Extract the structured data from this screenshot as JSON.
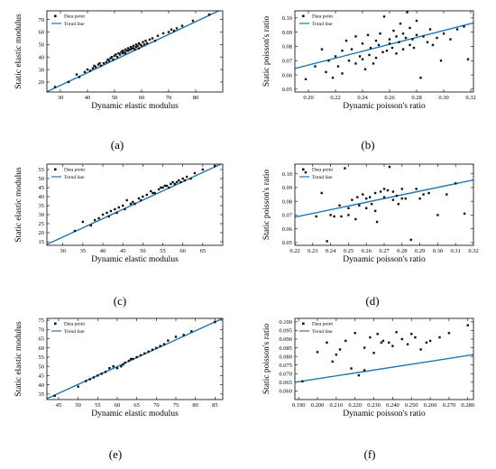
{
  "chart_data": [
    {
      "type": "scatter",
      "panel_label": "(a)",
      "xlabel": "Dynamic elastic modulus",
      "ylabel": "Static elastic modulus",
      "xlim": [
        25,
        90
      ],
      "ylim": [
        12,
        77
      ],
      "xticks": [
        30,
        40,
        50,
        60,
        70,
        80
      ],
      "yticks": [
        20,
        30,
        40,
        50,
        60,
        70
      ],
      "tick_decimals": 0,
      "legend_position": "top-left",
      "points_legend": "Data point",
      "trend_legend": "Trend line",
      "trend_line": [
        [
          25,
          12.2
        ],
        [
          90,
          78.5
        ]
      ],
      "x": [
        28,
        33,
        36,
        37,
        39,
        40,
        41,
        42,
        42.5,
        43,
        44,
        44.5,
        45,
        46,
        47,
        47.5,
        48,
        48.5,
        49,
        49.5,
        50,
        50.5,
        51,
        51.5,
        52,
        52.5,
        53,
        53,
        53.5,
        54,
        54,
        54.5,
        55,
        55,
        55.5,
        56,
        56,
        56.5,
        57,
        57,
        57.5,
        58,
        58,
        58.5,
        59,
        59,
        59.5,
        60,
        60.5,
        61,
        61.5,
        62,
        63,
        64,
        65,
        66,
        68,
        70,
        71,
        72,
        73,
        75,
        79,
        85
      ],
      "y": [
        16,
        20,
        26,
        24,
        28,
        30,
        29,
        31,
        33,
        32,
        34,
        35,
        33,
        35,
        36,
        38,
        37,
        39,
        40,
        38,
        41,
        42,
        40,
        43,
        42,
        44,
        43,
        45,
        44,
        46,
        43,
        45,
        47,
        45,
        46,
        48,
        46,
        47,
        49,
        47,
        46,
        48,
        50,
        49,
        47,
        51,
        50,
        49,
        52,
        50,
        53,
        51,
        54,
        55,
        53,
        57,
        59,
        60,
        62,
        61,
        63,
        65,
        69,
        74
      ]
    },
    {
      "type": "scatter",
      "panel_label": "(b)",
      "xlabel": "Dynamic poisson's ratio",
      "ylabel": "Static poisson's ratio",
      "xlim": [
        0.19,
        0.322
      ],
      "ylim": [
        0.048,
        0.105
      ],
      "xticks": [
        0.2,
        0.22,
        0.24,
        0.26,
        0.28,
        0.3,
        0.32
      ],
      "yticks": [
        0.05,
        0.06,
        0.07,
        0.08,
        0.09,
        0.1
      ],
      "tick_decimals": 2,
      "legend_position": "top-left",
      "points_legend": "Data point",
      "trend_legend": "Trend line",
      "trend_line": [
        [
          0.19,
          0.0645
        ],
        [
          0.322,
          0.0965
        ]
      ],
      "x": [
        0.198,
        0.205,
        0.21,
        0.213,
        0.215,
        0.218,
        0.22,
        0.222,
        0.225,
        0.225,
        0.228,
        0.23,
        0.232,
        0.235,
        0.235,
        0.238,
        0.24,
        0.24,
        0.242,
        0.244,
        0.245,
        0.246,
        0.248,
        0.25,
        0.25,
        0.252,
        0.253,
        0.255,
        0.256,
        0.258,
        0.26,
        0.26,
        0.262,
        0.263,
        0.265,
        0.265,
        0.267,
        0.268,
        0.27,
        0.27,
        0.272,
        0.273,
        0.275,
        0.275,
        0.277,
        0.278,
        0.28,
        0.28,
        0.283,
        0.285,
        0.288,
        0.29,
        0.292,
        0.295,
        0.298,
        0.3,
        0.305,
        0.31,
        0.315,
        0.318
      ],
      "y": [
        0.057,
        0.066,
        0.078,
        0.062,
        0.07,
        0.058,
        0.073,
        0.066,
        0.077,
        0.061,
        0.084,
        0.07,
        0.078,
        0.068,
        0.087,
        0.073,
        0.071,
        0.082,
        0.064,
        0.088,
        0.074,
        0.079,
        0.068,
        0.084,
        0.072,
        0.081,
        0.089,
        0.076,
        0.101,
        0.077,
        0.082,
        0.085,
        0.079,
        0.091,
        0.087,
        0.075,
        0.083,
        0.096,
        0.089,
        0.078,
        0.086,
        0.104,
        0.081,
        0.093,
        0.085,
        0.079,
        0.088,
        0.098,
        0.058,
        0.087,
        0.083,
        0.092,
        0.081,
        0.086,
        0.07,
        0.089,
        0.085,
        0.092,
        0.094,
        0.071
      ]
    },
    {
      "type": "scatter",
      "panel_label": "(c)",
      "xlabel": "Dynamic elastic modulus",
      "ylabel": "Static elastic modulus",
      "xlim": [
        26,
        70
      ],
      "ylim": [
        13,
        58
      ],
      "xticks": [
        30,
        35,
        40,
        45,
        50,
        55,
        60,
        65
      ],
      "yticks": [
        15,
        20,
        25,
        30,
        35,
        40,
        45,
        50,
        55
      ],
      "tick_decimals": 0,
      "legend_position": "top-left",
      "points_legend": "Data point",
      "trend_legend": "Trend line",
      "trend_line": [
        [
          26,
          13.5
        ],
        [
          70,
          58.5
        ]
      ],
      "x": [
        33,
        35,
        37,
        38,
        39,
        40,
        41,
        41.5,
        42,
        43,
        43.5,
        44,
        45,
        45.5,
        46,
        47,
        47.5,
        48,
        49,
        49.5,
        50,
        51,
        52,
        52.5,
        53,
        54,
        54.5,
        55,
        55.5,
        56,
        56.5,
        57,
        57.5,
        58,
        58.5,
        59,
        59.5,
        60,
        60.5,
        61,
        62,
        63,
        65,
        68
      ],
      "y": [
        21,
        26,
        24,
        27,
        28,
        30,
        31,
        29,
        32,
        33,
        31,
        34,
        35,
        33,
        38,
        36,
        37,
        36,
        39,
        38,
        40,
        41,
        43,
        42,
        42,
        44,
        45,
        45,
        46,
        46,
        45,
        47,
        48,
        47,
        48,
        49,
        48,
        50,
        49,
        51,
        50,
        53,
        55,
        57
      ]
    },
    {
      "type": "scatter",
      "panel_label": "(d)",
      "xlabel": "Dynamic poisson's ratio",
      "ylabel": "Static poisson's ratio",
      "xlim": [
        0.22,
        0.32
      ],
      "ylim": [
        0.048,
        0.107
      ],
      "xticks": [
        0.22,
        0.23,
        0.24,
        0.25,
        0.26,
        0.27,
        0.28,
        0.29,
        0.3,
        0.31,
        0.32
      ],
      "yticks": [
        0.05,
        0.06,
        0.07,
        0.08,
        0.09,
        0.1
      ],
      "tick_decimals": 2,
      "legend_position": "top-left",
      "points_legend": "Data point",
      "trend_legend": "Trend line",
      "trend_line": [
        [
          0.22,
          0.0685
        ],
        [
          0.32,
          0.0955
        ]
      ],
      "x": [
        0.226,
        0.232,
        0.235,
        0.238,
        0.24,
        0.242,
        0.245,
        0.246,
        0.248,
        0.25,
        0.25,
        0.252,
        0.254,
        0.255,
        0.256,
        0.258,
        0.26,
        0.26,
        0.262,
        0.263,
        0.265,
        0.265,
        0.266,
        0.268,
        0.27,
        0.27,
        0.272,
        0.273,
        0.275,
        0.275,
        0.277,
        0.278,
        0.28,
        0.28,
        0.282,
        0.285,
        0.288,
        0.29,
        0.292,
        0.295,
        0.3,
        0.305,
        0.31,
        0.315
      ],
      "y": [
        0.101,
        0.069,
        0.086,
        0.051,
        0.07,
        0.069,
        0.077,
        0.069,
        0.104,
        0.075,
        0.07,
        0.081,
        0.067,
        0.083,
        0.077,
        0.085,
        0.082,
        0.075,
        0.083,
        0.078,
        0.086,
        0.073,
        0.065,
        0.087,
        0.083,
        0.089,
        0.088,
        0.105,
        0.081,
        0.087,
        0.084,
        0.078,
        0.082,
        0.089,
        0.082,
        0.052,
        0.089,
        0.082,
        0.085,
        0.086,
        0.07,
        0.085,
        0.093,
        0.071
      ]
    },
    {
      "type": "scatter",
      "panel_label": "(e)",
      "xlabel": "Dynamic elastic modulus",
      "ylabel": "Static elastic modulus",
      "xlim": [
        42,
        87
      ],
      "ylim": [
        32,
        76
      ],
      "xticks": [
        45,
        50,
        55,
        60,
        65,
        70,
        75,
        80,
        85
      ],
      "yticks": [
        35,
        40,
        45,
        50,
        55,
        60,
        65,
        70,
        75
      ],
      "tick_decimals": 0,
      "legend_position": "top-left",
      "points_legend": "Data point",
      "trend_legend": "Trend line",
      "trend_line": [
        [
          42,
          32.5
        ],
        [
          87,
          76
        ]
      ],
      "x": [
        44,
        50,
        52,
        53,
        54,
        55,
        56,
        57,
        58,
        59,
        60,
        61,
        61.5,
        62,
        63,
        63.5,
        64,
        65,
        66,
        67,
        68,
        69,
        70,
        71,
        72,
        73,
        75,
        77,
        79,
        85
      ],
      "y": [
        34,
        39,
        42,
        43,
        44,
        45,
        46,
        47,
        49,
        50,
        49,
        50,
        51,
        52,
        53,
        54,
        54,
        55,
        56,
        57,
        58,
        59,
        60,
        61,
        62,
        64,
        66,
        67,
        69,
        74
      ]
    },
    {
      "type": "scatter",
      "panel_label": "(f)",
      "xlabel": "Dynamic poisson's ratio",
      "ylabel": "Static poisson's ratio",
      "xlim": [
        0.188,
        0.283
      ],
      "ylim": [
        0.055,
        0.102
      ],
      "xticks": [
        0.19,
        0.2,
        0.21,
        0.22,
        0.23,
        0.24,
        0.25,
        0.26,
        0.27,
        0.28
      ],
      "yticks": [
        0.06,
        0.065,
        0.07,
        0.075,
        0.08,
        0.085,
        0.09,
        0.095,
        0.1
      ],
      "tick_decimals": 3,
      "legend_position": "top-left",
      "points_legend": "Data point",
      "trend_legend": "Trend line",
      "trend_line": [
        [
          0.188,
          0.065
        ],
        [
          0.283,
          0.081
        ]
      ],
      "x": [
        0.192,
        0.2,
        0.205,
        0.208,
        0.21,
        0.212,
        0.215,
        0.218,
        0.22,
        0.222,
        0.225,
        0.225,
        0.228,
        0.23,
        0.232,
        0.234,
        0.235,
        0.238,
        0.24,
        0.242,
        0.245,
        0.248,
        0.25,
        0.252,
        0.255,
        0.258,
        0.26,
        0.265,
        0.27,
        0.28
      ],
      "y": [
        0.0655,
        0.0825,
        0.088,
        0.077,
        0.081,
        0.084,
        0.089,
        0.073,
        0.0935,
        0.069,
        0.085,
        0.072,
        0.091,
        0.082,
        0.093,
        0.088,
        0.089,
        0.088,
        0.086,
        0.094,
        0.09,
        0.087,
        0.093,
        0.091,
        0.084,
        0.088,
        0.089,
        0.091,
        0.0935,
        0.098
      ]
    }
  ]
}
